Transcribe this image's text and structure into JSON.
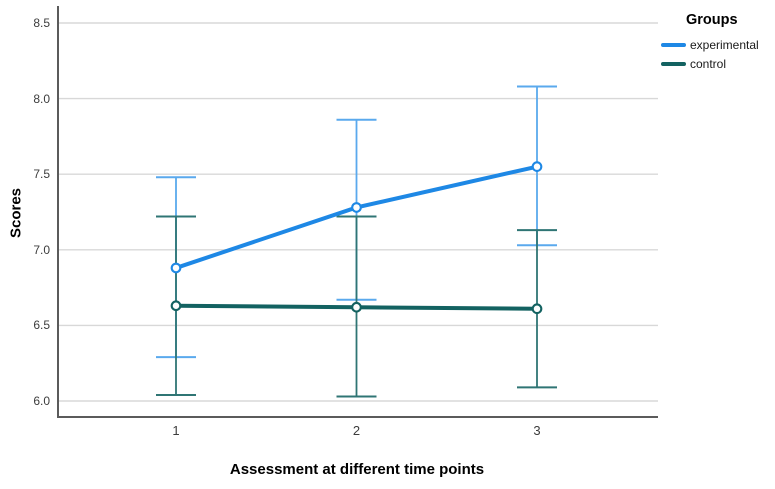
{
  "chart_data": {
    "type": "line",
    "title": "",
    "xlabel": "Assessment at different time points",
    "ylabel": "Scores",
    "categories": [
      "1",
      "2",
      "3"
    ],
    "y_ticks": [
      6.0,
      6.5,
      7.0,
      7.5,
      8.0,
      8.5
    ],
    "y_tick_labels": [
      "6.0",
      "6.5",
      "7.0",
      "7.5",
      "8.0",
      "8.5"
    ],
    "ylim": [
      5.9,
      8.6
    ],
    "grid": true,
    "legend": {
      "title": "Groups",
      "position": "top-right"
    },
    "series": [
      {
        "name": "experimental",
        "color": "#1E88E5",
        "errorbar_color": "#5AA9ED",
        "values": [
          6.88,
          7.28,
          7.55
        ],
        "ci_low": [
          6.29,
          6.67,
          7.03
        ],
        "ci_high": [
          7.48,
          7.86,
          8.08
        ]
      },
      {
        "name": "control",
        "color": "#136261",
        "errorbar_color": "#2F7574",
        "values": [
          6.63,
          6.62,
          6.61
        ],
        "ci_low": [
          6.04,
          6.03,
          6.09
        ],
        "ci_high": [
          7.22,
          7.22,
          7.13
        ]
      }
    ],
    "style_colors": {
      "gridline": "#D8D8D8",
      "axis_frame": "#5B5B5B",
      "tick_text": "#3C3C3C",
      "marker_fill": "#FDFEFE"
    }
  }
}
